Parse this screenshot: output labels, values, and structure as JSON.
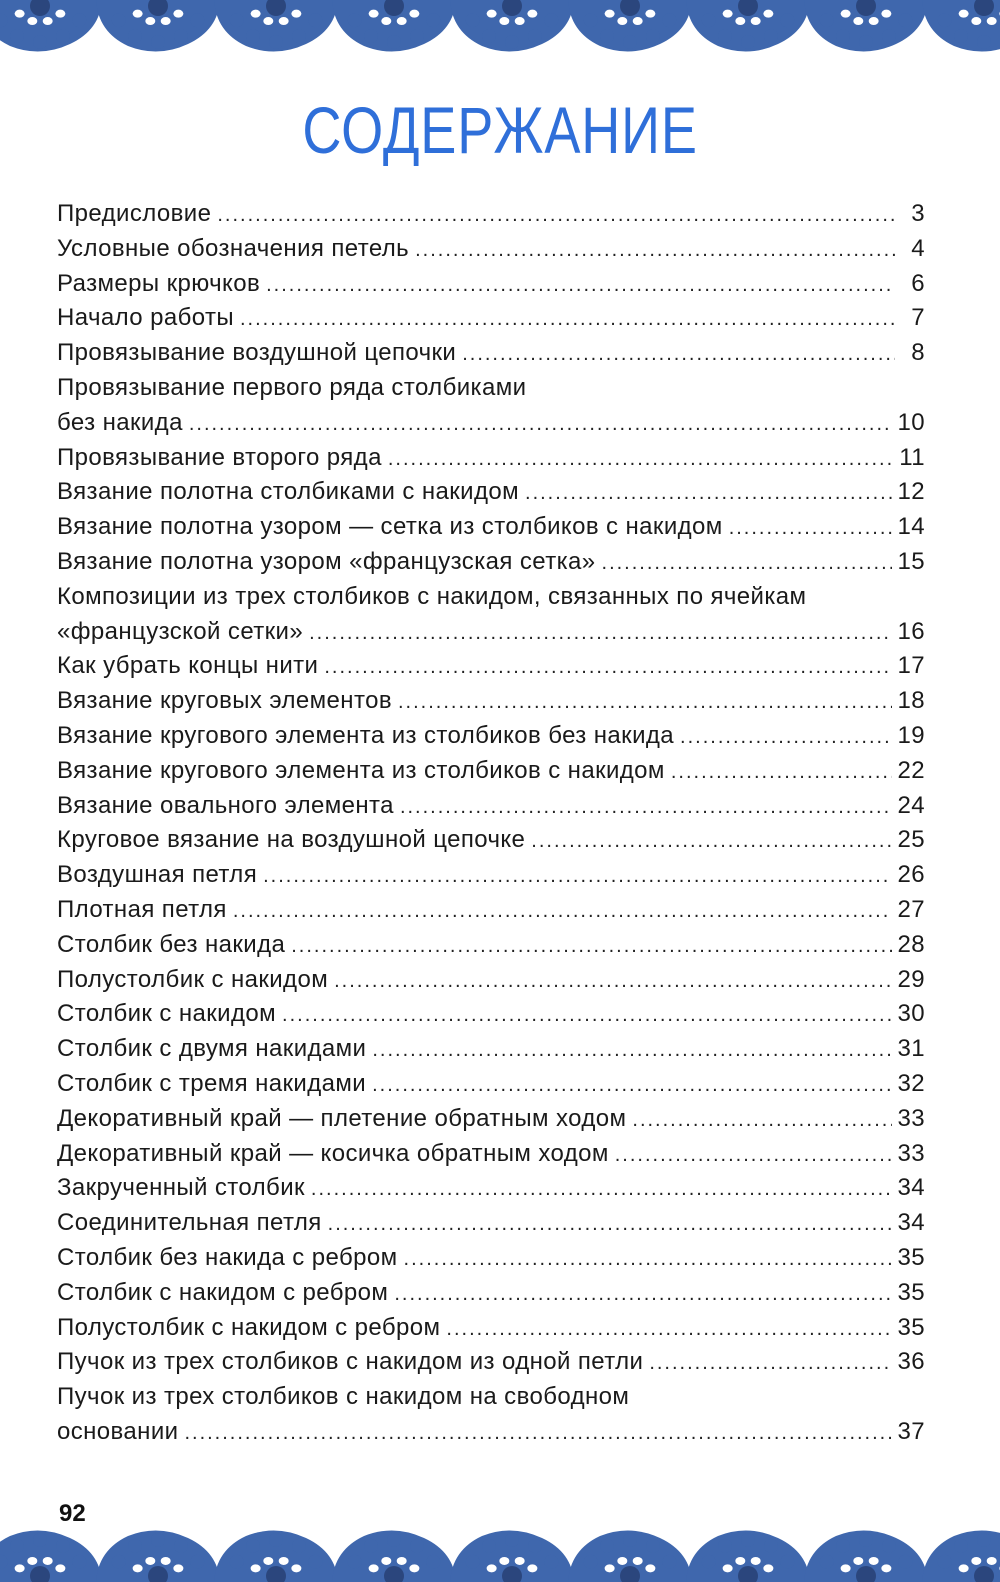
{
  "page": {
    "title": "СОДЕРЖАНИЕ",
    "page_number": "92",
    "accent_color": "#2f6fd9",
    "border_color": "#3f67ad",
    "border_decoration": "crochet-lace-border"
  },
  "toc": [
    {
      "title": "Предисловие",
      "page": "3"
    },
    {
      "title": "Условные обозначения петель",
      "page": "4"
    },
    {
      "title": "Размеры крючков",
      "page": "6"
    },
    {
      "title": "Начало работы",
      "page": "7"
    },
    {
      "title": "Провязывание воздушной цепочки",
      "page": "8"
    },
    {
      "title_line1": "Провязывание первого ряда столбиками",
      "title": "без накида",
      "page": "10"
    },
    {
      "title": "Провязывание второго ряда",
      "page": "11"
    },
    {
      "title": "Вязание полотна столбиками с накидом",
      "page": "12"
    },
    {
      "title": "Вязание полотна узором — сетка из столбиков с накидом",
      "page": "14"
    },
    {
      "title": "Вязание полотна узором «французская сетка»",
      "page": "15"
    },
    {
      "title_line1": "Композиции из трех столбиков с накидом, связанных по ячейкам",
      "title": "«французской сетки»",
      "page": "16"
    },
    {
      "title": "Как убрать концы нити",
      "page": "17"
    },
    {
      "title": "Вязание круговых элементов",
      "page": "18"
    },
    {
      "title": "Вязание кругового элемента из столбиков без накида",
      "page": "19"
    },
    {
      "title": "Вязание кругового элемента из столбиков с накидом",
      "page": "22"
    },
    {
      "title": "Вязание овального элемента",
      "page": "24"
    },
    {
      "title": "Круговое вязание на воздушной цепочке",
      "page": "25"
    },
    {
      "title": "Воздушная петля",
      "page": "26"
    },
    {
      "title": "Плотная петля",
      "page": "27"
    },
    {
      "title": "Столбик без накида",
      "page": "28"
    },
    {
      "title": "Полустолбик с накидом",
      "page": "29"
    },
    {
      "title": "Столбик с накидом",
      "page": "30"
    },
    {
      "title": "Столбик с двумя накидами",
      "page": "31"
    },
    {
      "title": "Столбик с тремя накидами",
      "page": "32"
    },
    {
      "title": "Декоративный край — плетение обратным ходом",
      "page": "33"
    },
    {
      "title": "Декоративный край — косичка обратным ходом",
      "page": "33"
    },
    {
      "title": "Закрученный столбик",
      "page": "34"
    },
    {
      "title": "Соединительная петля",
      "page": "34"
    },
    {
      "title": "Столбик без накида с ребром",
      "page": "35"
    },
    {
      "title": "Столбик с накидом с ребром",
      "page": "35"
    },
    {
      "title": "Полустолбик с накидом с ребром",
      "page": "35"
    },
    {
      "title": "Пучок из трех столбиков с накидом из одной петли",
      "page": "36"
    },
    {
      "title_line1": "Пучок из трех столбиков с накидом на свободном",
      "title": "основании",
      "page": "37"
    }
  ]
}
